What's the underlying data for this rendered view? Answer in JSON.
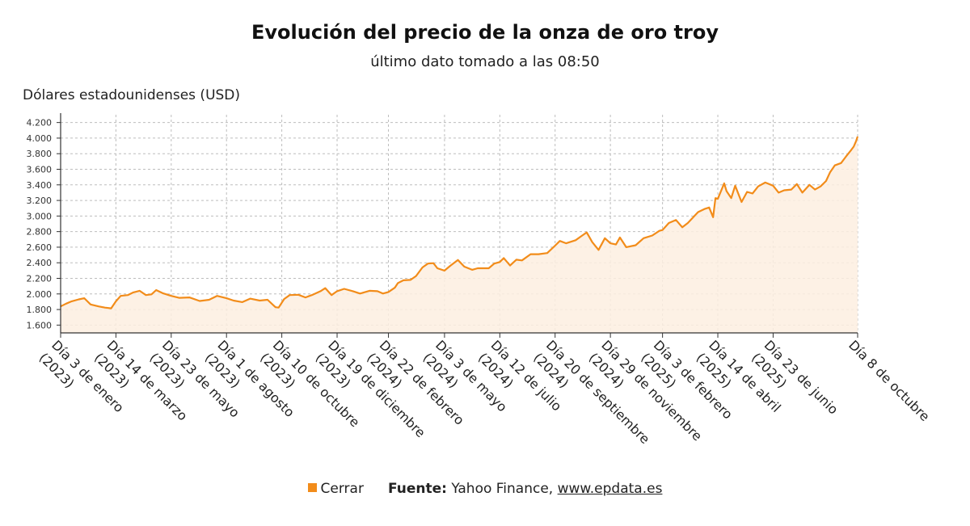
{
  "chart_data": {
    "type": "area",
    "title": "Evolución del precio de la onza de oro troy",
    "subtitle": "último dato tomado a las 08:50",
    "ylabel": "Dólares estadounidenses (USD)",
    "ylim": [
      1500,
      4300
    ],
    "yticks": [
      1600,
      1800,
      2000,
      2200,
      2400,
      2600,
      2800,
      3000,
      3200,
      3400,
      3600,
      3800,
      4000,
      4200
    ],
    "ytick_labels": [
      "1.600",
      "1.800",
      "2.000",
      "2.200",
      "2.400",
      "2.600",
      "2.800",
      "3.000",
      "3.200",
      "3.400",
      "3.600",
      "3.800",
      "4.000",
      "4.200"
    ],
    "x_range": [
      "2023-01-03",
      "2025-10-08"
    ],
    "xticks": [
      {
        "date": "2023-01-03",
        "label": [
          "Día 3 de enero",
          "(2023)"
        ]
      },
      {
        "date": "2023-03-14",
        "label": [
          "Día 14 de marzo",
          "(2023)"
        ]
      },
      {
        "date": "2023-05-23",
        "label": [
          "Día 23 de mayo",
          "(2023)"
        ]
      },
      {
        "date": "2023-08-01",
        "label": [
          "Día 1 de agosto",
          "(2023)"
        ]
      },
      {
        "date": "2023-10-10",
        "label": [
          "Día 10 de octubre",
          "(2023)"
        ]
      },
      {
        "date": "2023-12-19",
        "label": [
          "Día 19 de diciembre",
          "(2023)"
        ]
      },
      {
        "date": "2024-02-22",
        "label": [
          "Día 22 de febrero",
          "(2024)"
        ]
      },
      {
        "date": "2024-05-03",
        "label": [
          "Día 3 de mayo",
          "(2024)"
        ]
      },
      {
        "date": "2024-07-12",
        "label": [
          "Día 12 de julio",
          "(2024)"
        ]
      },
      {
        "date": "2024-09-20",
        "label": [
          "Día 20 de septiembre",
          "(2024)"
        ]
      },
      {
        "date": "2024-11-29",
        "label": [
          "Día 29 de noviembre",
          "(2024)"
        ]
      },
      {
        "date": "2025-02-03",
        "label": [
          "Día 3 de febrero",
          "(2025)"
        ]
      },
      {
        "date": "2025-04-14",
        "label": [
          "Día 14 de abril",
          "(2025)"
        ]
      },
      {
        "date": "2025-06-23",
        "label": [
          "Día 23 de junio",
          "(2025)"
        ]
      },
      {
        "date": "2025-10-08",
        "label": [
          "Día 8 de octubre"
        ]
      }
    ],
    "grid": true,
    "series": [
      {
        "name": "Cerrar",
        "color": "#f28c1a",
        "points": [
          [
            "2023-01-03",
            1840
          ],
          [
            "2023-01-10",
            1875
          ],
          [
            "2023-01-17",
            1905
          ],
          [
            "2023-01-26",
            1930
          ],
          [
            "2023-02-02",
            1945
          ],
          [
            "2023-02-10",
            1865
          ],
          [
            "2023-02-20",
            1840
          ],
          [
            "2023-02-28",
            1825
          ],
          [
            "2023-03-08",
            1815
          ],
          [
            "2023-03-14",
            1905
          ],
          [
            "2023-03-20",
            1975
          ],
          [
            "2023-03-29",
            1985
          ],
          [
            "2023-04-05",
            2020
          ],
          [
            "2023-04-13",
            2040
          ],
          [
            "2023-04-21",
            1985
          ],
          [
            "2023-04-28",
            1995
          ],
          [
            "2023-05-04",
            2050
          ],
          [
            "2023-05-12",
            2010
          ],
          [
            "2023-05-23",
            1975
          ],
          [
            "2023-06-02",
            1950
          ],
          [
            "2023-06-15",
            1955
          ],
          [
            "2023-06-28",
            1910
          ],
          [
            "2023-07-10",
            1925
          ],
          [
            "2023-07-20",
            1975
          ],
          [
            "2023-08-01",
            1945
          ],
          [
            "2023-08-10",
            1915
          ],
          [
            "2023-08-21",
            1895
          ],
          [
            "2023-08-31",
            1940
          ],
          [
            "2023-09-12",
            1915
          ],
          [
            "2023-09-22",
            1925
          ],
          [
            "2023-10-02",
            1830
          ],
          [
            "2023-10-06",
            1825
          ],
          [
            "2023-10-13",
            1935
          ],
          [
            "2023-10-20",
            1985
          ],
          [
            "2023-10-31",
            1990
          ],
          [
            "2023-11-09",
            1955
          ],
          [
            "2023-11-17",
            1985
          ],
          [
            "2023-11-28",
            2035
          ],
          [
            "2023-12-04",
            2075
          ],
          [
            "2023-12-12",
            1985
          ],
          [
            "2023-12-19",
            2035
          ],
          [
            "2023-12-28",
            2065
          ],
          [
            "2024-01-08",
            2035
          ],
          [
            "2024-01-17",
            2005
          ],
          [
            "2024-01-29",
            2040
          ],
          [
            "2024-02-08",
            2035
          ],
          [
            "2024-02-15",
            2005
          ],
          [
            "2024-02-22",
            2025
          ],
          [
            "2024-03-01",
            2080
          ],
          [
            "2024-03-05",
            2140
          ],
          [
            "2024-03-12",
            2175
          ],
          [
            "2024-03-21",
            2180
          ],
          [
            "2024-03-28",
            2230
          ],
          [
            "2024-04-05",
            2340
          ],
          [
            "2024-04-12",
            2390
          ],
          [
            "2024-04-19",
            2395
          ],
          [
            "2024-04-24",
            2330
          ],
          [
            "2024-05-03",
            2300
          ],
          [
            "2024-05-10",
            2360
          ],
          [
            "2024-05-20",
            2435
          ],
          [
            "2024-05-28",
            2350
          ],
          [
            "2024-06-07",
            2310
          ],
          [
            "2024-06-14",
            2330
          ],
          [
            "2024-06-21",
            2330
          ],
          [
            "2024-06-28",
            2330
          ],
          [
            "2024-07-05",
            2390
          ],
          [
            "2024-07-12",
            2410
          ],
          [
            "2024-07-17",
            2460
          ],
          [
            "2024-07-25",
            2365
          ],
          [
            "2024-08-02",
            2440
          ],
          [
            "2024-08-09",
            2430
          ],
          [
            "2024-08-20",
            2510
          ],
          [
            "2024-08-30",
            2510
          ],
          [
            "2024-09-10",
            2525
          ],
          [
            "2024-09-20",
            2620
          ],
          [
            "2024-09-26",
            2680
          ],
          [
            "2024-10-04",
            2650
          ],
          [
            "2024-10-16",
            2690
          ],
          [
            "2024-10-23",
            2740
          ],
          [
            "2024-10-30",
            2790
          ],
          [
            "2024-11-06",
            2665
          ],
          [
            "2024-11-14",
            2565
          ],
          [
            "2024-11-22",
            2715
          ],
          [
            "2024-11-29",
            2650
          ],
          [
            "2024-12-06",
            2635
          ],
          [
            "2024-12-11",
            2725
          ],
          [
            "2024-12-19",
            2600
          ],
          [
            "2024-12-31",
            2625
          ],
          [
            "2025-01-10",
            2715
          ],
          [
            "2025-01-21",
            2750
          ],
          [
            "2025-01-30",
            2810
          ],
          [
            "2025-02-03",
            2820
          ],
          [
            "2025-02-11",
            2910
          ],
          [
            "2025-02-20",
            2950
          ],
          [
            "2025-02-28",
            2855
          ],
          [
            "2025-03-07",
            2910
          ],
          [
            "2025-03-14",
            2985
          ],
          [
            "2025-03-20",
            3050
          ],
          [
            "2025-03-28",
            3090
          ],
          [
            "2025-04-03",
            3110
          ],
          [
            "2025-04-08",
            2985
          ],
          [
            "2025-04-11",
            3230
          ],
          [
            "2025-04-14",
            3220
          ],
          [
            "2025-04-22",
            3420
          ],
          [
            "2025-04-25",
            3320
          ],
          [
            "2025-05-01",
            3230
          ],
          [
            "2025-05-06",
            3390
          ],
          [
            "2025-05-14",
            3180
          ],
          [
            "2025-05-21",
            3310
          ],
          [
            "2025-05-28",
            3290
          ],
          [
            "2025-06-04",
            3380
          ],
          [
            "2025-06-13",
            3430
          ],
          [
            "2025-06-23",
            3390
          ],
          [
            "2025-06-30",
            3300
          ],
          [
            "2025-07-07",
            3330
          ],
          [
            "2025-07-16",
            3340
          ],
          [
            "2025-07-23",
            3410
          ],
          [
            "2025-07-30",
            3300
          ],
          [
            "2025-08-08",
            3400
          ],
          [
            "2025-08-15",
            3340
          ],
          [
            "2025-08-22",
            3380
          ],
          [
            "2025-08-29",
            3450
          ],
          [
            "2025-09-03",
            3560
          ],
          [
            "2025-09-09",
            3650
          ],
          [
            "2025-09-17",
            3680
          ],
          [
            "2025-09-23",
            3760
          ],
          [
            "2025-09-30",
            3850
          ],
          [
            "2025-10-03",
            3890
          ],
          [
            "2025-10-06",
            3960
          ],
          [
            "2025-10-08",
            4020
          ]
        ]
      }
    ],
    "legend": {
      "placement": "bottom-center",
      "entries": [
        "Cerrar"
      ]
    },
    "source": {
      "label": "Fuente:",
      "text": "Yahoo Finance,",
      "link": "www.epdata.es"
    }
  }
}
